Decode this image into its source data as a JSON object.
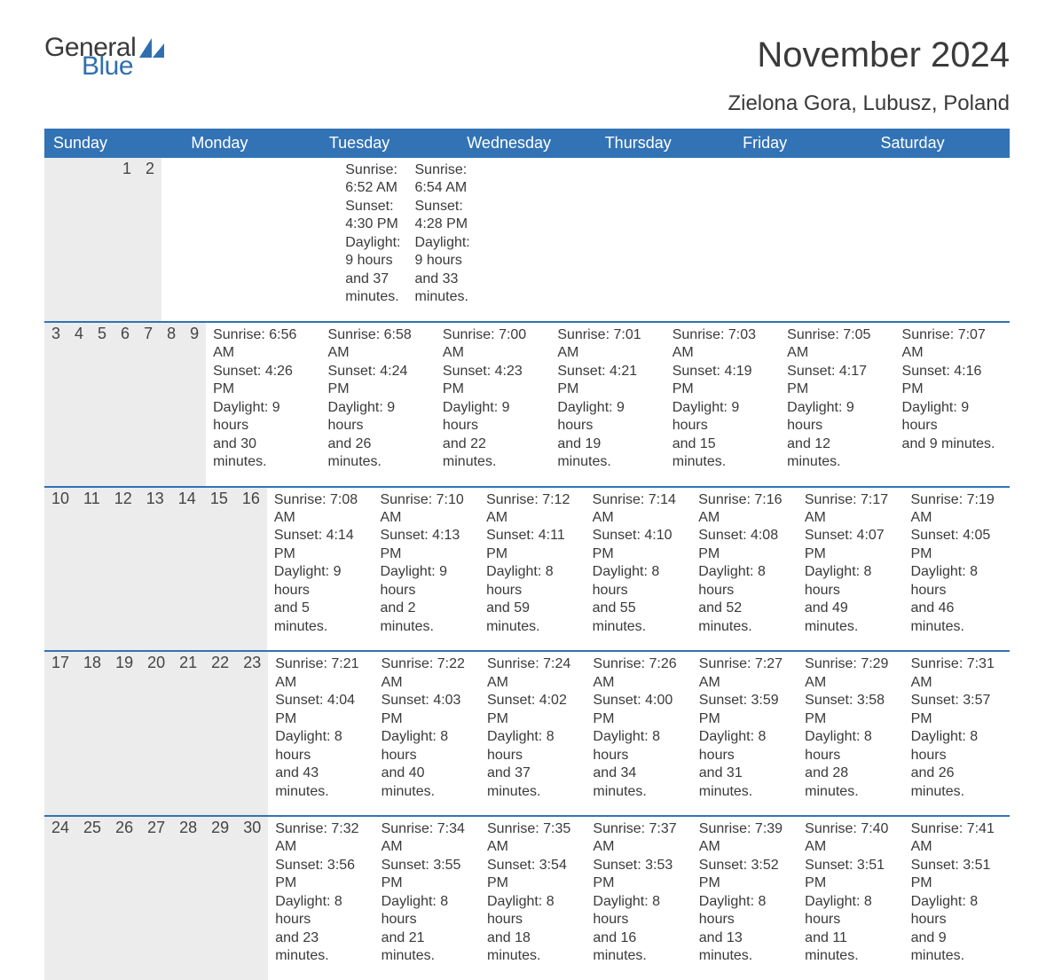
{
  "brand": {
    "general": "General",
    "blue": "Blue"
  },
  "title": "November 2024",
  "location": "Zielona Gora, Lubusz, Poland",
  "colors": {
    "header_bg": "#3273b5",
    "header_text": "#ffffff",
    "row_border": "#3273b5",
    "daynum_bg": "#ececec",
    "text": "#3a3a3a",
    "logo_blue": "#2f6fb0",
    "background": "#ffffff"
  },
  "day_headers": [
    "Sunday",
    "Monday",
    "Tuesday",
    "Wednesday",
    "Thursday",
    "Friday",
    "Saturday"
  ],
  "weeks": [
    [
      null,
      null,
      null,
      null,
      null,
      {
        "n": "1",
        "sunrise": "Sunrise: 6:52 AM",
        "sunset": "Sunset: 4:30 PM",
        "dl1": "Daylight: 9 hours",
        "dl2": "and 37 minutes."
      },
      {
        "n": "2",
        "sunrise": "Sunrise: 6:54 AM",
        "sunset": "Sunset: 4:28 PM",
        "dl1": "Daylight: 9 hours",
        "dl2": "and 33 minutes."
      }
    ],
    [
      {
        "n": "3",
        "sunrise": "Sunrise: 6:56 AM",
        "sunset": "Sunset: 4:26 PM",
        "dl1": "Daylight: 9 hours",
        "dl2": "and 30 minutes."
      },
      {
        "n": "4",
        "sunrise": "Sunrise: 6:58 AM",
        "sunset": "Sunset: 4:24 PM",
        "dl1": "Daylight: 9 hours",
        "dl2": "and 26 minutes."
      },
      {
        "n": "5",
        "sunrise": "Sunrise: 7:00 AM",
        "sunset": "Sunset: 4:23 PM",
        "dl1": "Daylight: 9 hours",
        "dl2": "and 22 minutes."
      },
      {
        "n": "6",
        "sunrise": "Sunrise: 7:01 AM",
        "sunset": "Sunset: 4:21 PM",
        "dl1": "Daylight: 9 hours",
        "dl2": "and 19 minutes."
      },
      {
        "n": "7",
        "sunrise": "Sunrise: 7:03 AM",
        "sunset": "Sunset: 4:19 PM",
        "dl1": "Daylight: 9 hours",
        "dl2": "and 15 minutes."
      },
      {
        "n": "8",
        "sunrise": "Sunrise: 7:05 AM",
        "sunset": "Sunset: 4:17 PM",
        "dl1": "Daylight: 9 hours",
        "dl2": "and 12 minutes."
      },
      {
        "n": "9",
        "sunrise": "Sunrise: 7:07 AM",
        "sunset": "Sunset: 4:16 PM",
        "dl1": "Daylight: 9 hours",
        "dl2": "and 9 minutes."
      }
    ],
    [
      {
        "n": "10",
        "sunrise": "Sunrise: 7:08 AM",
        "sunset": "Sunset: 4:14 PM",
        "dl1": "Daylight: 9 hours",
        "dl2": "and 5 minutes."
      },
      {
        "n": "11",
        "sunrise": "Sunrise: 7:10 AM",
        "sunset": "Sunset: 4:13 PM",
        "dl1": "Daylight: 9 hours",
        "dl2": "and 2 minutes."
      },
      {
        "n": "12",
        "sunrise": "Sunrise: 7:12 AM",
        "sunset": "Sunset: 4:11 PM",
        "dl1": "Daylight: 8 hours",
        "dl2": "and 59 minutes."
      },
      {
        "n": "13",
        "sunrise": "Sunrise: 7:14 AM",
        "sunset": "Sunset: 4:10 PM",
        "dl1": "Daylight: 8 hours",
        "dl2": "and 55 minutes."
      },
      {
        "n": "14",
        "sunrise": "Sunrise: 7:16 AM",
        "sunset": "Sunset: 4:08 PM",
        "dl1": "Daylight: 8 hours",
        "dl2": "and 52 minutes."
      },
      {
        "n": "15",
        "sunrise": "Sunrise: 7:17 AM",
        "sunset": "Sunset: 4:07 PM",
        "dl1": "Daylight: 8 hours",
        "dl2": "and 49 minutes."
      },
      {
        "n": "16",
        "sunrise": "Sunrise: 7:19 AM",
        "sunset": "Sunset: 4:05 PM",
        "dl1": "Daylight: 8 hours",
        "dl2": "and 46 minutes."
      }
    ],
    [
      {
        "n": "17",
        "sunrise": "Sunrise: 7:21 AM",
        "sunset": "Sunset: 4:04 PM",
        "dl1": "Daylight: 8 hours",
        "dl2": "and 43 minutes."
      },
      {
        "n": "18",
        "sunrise": "Sunrise: 7:22 AM",
        "sunset": "Sunset: 4:03 PM",
        "dl1": "Daylight: 8 hours",
        "dl2": "and 40 minutes."
      },
      {
        "n": "19",
        "sunrise": "Sunrise: 7:24 AM",
        "sunset": "Sunset: 4:02 PM",
        "dl1": "Daylight: 8 hours",
        "dl2": "and 37 minutes."
      },
      {
        "n": "20",
        "sunrise": "Sunrise: 7:26 AM",
        "sunset": "Sunset: 4:00 PM",
        "dl1": "Daylight: 8 hours",
        "dl2": "and 34 minutes."
      },
      {
        "n": "21",
        "sunrise": "Sunrise: 7:27 AM",
        "sunset": "Sunset: 3:59 PM",
        "dl1": "Daylight: 8 hours",
        "dl2": "and 31 minutes."
      },
      {
        "n": "22",
        "sunrise": "Sunrise: 7:29 AM",
        "sunset": "Sunset: 3:58 PM",
        "dl1": "Daylight: 8 hours",
        "dl2": "and 28 minutes."
      },
      {
        "n": "23",
        "sunrise": "Sunrise: 7:31 AM",
        "sunset": "Sunset: 3:57 PM",
        "dl1": "Daylight: 8 hours",
        "dl2": "and 26 minutes."
      }
    ],
    [
      {
        "n": "24",
        "sunrise": "Sunrise: 7:32 AM",
        "sunset": "Sunset: 3:56 PM",
        "dl1": "Daylight: 8 hours",
        "dl2": "and 23 minutes."
      },
      {
        "n": "25",
        "sunrise": "Sunrise: 7:34 AM",
        "sunset": "Sunset: 3:55 PM",
        "dl1": "Daylight: 8 hours",
        "dl2": "and 21 minutes."
      },
      {
        "n": "26",
        "sunrise": "Sunrise: 7:35 AM",
        "sunset": "Sunset: 3:54 PM",
        "dl1": "Daylight: 8 hours",
        "dl2": "and 18 minutes."
      },
      {
        "n": "27",
        "sunrise": "Sunrise: 7:37 AM",
        "sunset": "Sunset: 3:53 PM",
        "dl1": "Daylight: 8 hours",
        "dl2": "and 16 minutes."
      },
      {
        "n": "28",
        "sunrise": "Sunrise: 7:39 AM",
        "sunset": "Sunset: 3:52 PM",
        "dl1": "Daylight: 8 hours",
        "dl2": "and 13 minutes."
      },
      {
        "n": "29",
        "sunrise": "Sunrise: 7:40 AM",
        "sunset": "Sunset: 3:51 PM",
        "dl1": "Daylight: 8 hours",
        "dl2": "and 11 minutes."
      },
      {
        "n": "30",
        "sunrise": "Sunrise: 7:41 AM",
        "sunset": "Sunset: 3:51 PM",
        "dl1": "Daylight: 8 hours",
        "dl2": "and 9 minutes."
      }
    ]
  ]
}
